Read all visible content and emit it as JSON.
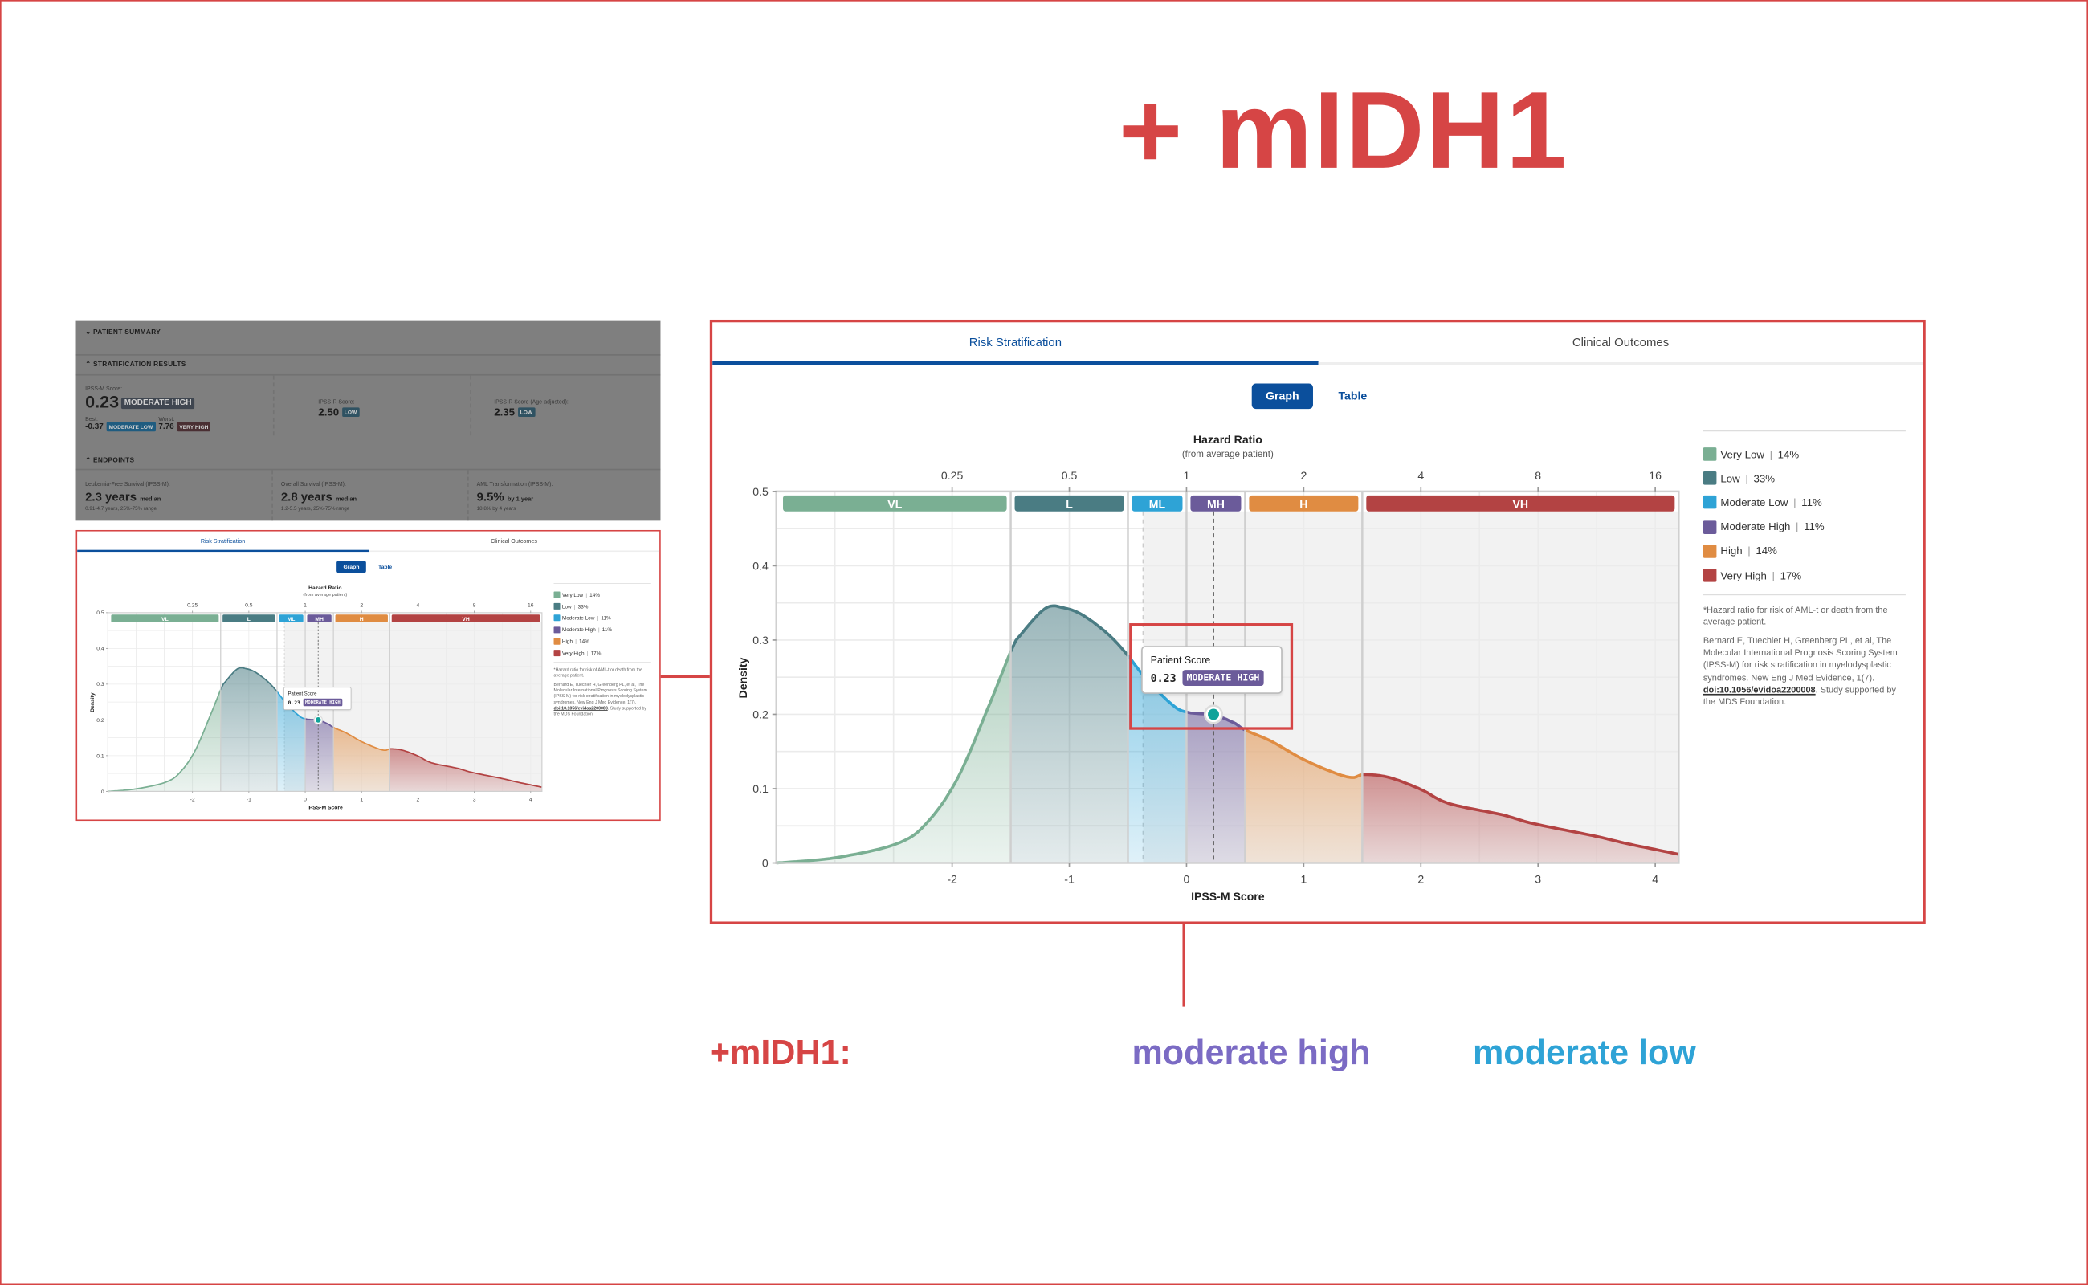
{
  "annotations": {
    "title": "+ mIDH1",
    "label": "+mIDH1:",
    "result_1": "moderate high",
    "result_2": "moderate low",
    "colors": {
      "red": "#d64545",
      "purple": "#7b6bc4",
      "blue": "#2ea3d6"
    }
  },
  "summary": {
    "patient_summary": "PATIENT SUMMARY",
    "stratification_results": "STRATIFICATION RESULTS",
    "ipssm_label": "IPSS-M Score:",
    "ipssm_value": "0.23",
    "ipssm_category": "MODERATE HIGH",
    "best_label": "Best:",
    "best_value": "-0.37",
    "best_category": "MODERATE LOW",
    "worst_label": "Worst:",
    "worst_value": "7.76",
    "worst_category": "VERY HIGH",
    "ipssr_label": "IPSS-R Score:",
    "ipssr_value": "2.50",
    "ipssr_category": "LOW",
    "ipssr_age_label": "IPSS-R Score (Age-adjusted):",
    "ipssr_age_value": "2.35",
    "ipssr_age_category": "LOW",
    "endpoints": "ENDPOINTS",
    "endpoint_items": [
      {
        "label": "Leukemia-Free Survival (IPSS-M):",
        "value": "2.3 years",
        "unit": "median",
        "sub": "0.91-4.7 years, 25%-75% range"
      },
      {
        "label": "Overall Survival (IPSS-M):",
        "value": "2.8 years",
        "unit": "median",
        "sub": "1.2-5.5 years, 25%-75% range"
      },
      {
        "label": "AML Transformation (IPSS-M):",
        "value": "9.5%",
        "unit": "by 1 year",
        "sub": "18.8% by 4 years"
      }
    ]
  },
  "panel": {
    "tabs": [
      {
        "label": "Risk Stratification",
        "active": true
      },
      {
        "label": "Clinical Outcomes",
        "active": false
      }
    ],
    "view_toggle": {
      "graph": "Graph",
      "table": "Table",
      "selected": "Graph"
    },
    "tooltip": {
      "title": "Patient Score",
      "score": "0.23",
      "category": "MODERATE HIGH"
    },
    "legend": {
      "items": [
        {
          "label": "Very Low",
          "pct": "14%",
          "color": "#7aaf93"
        },
        {
          "label": "Low",
          "pct": "33%",
          "color": "#4a7c83"
        },
        {
          "label": "Moderate Low",
          "pct": "11%",
          "color": "#2ea3d6"
        },
        {
          "label": "Moderate High",
          "pct": "11%",
          "color": "#6b5b9a"
        },
        {
          "label": "High",
          "pct": "14%",
          "color": "#e08c42"
        },
        {
          "label": "Very High",
          "pct": "17%",
          "color": "#b34343"
        }
      ],
      "footnote": "*Hazard ratio for risk of AML-t or death from the average patient.",
      "citation": "Bernard E, Tuechler H, Greenberg PL, et al, The Molecular International Prognosis Scoring System (IPSS-M) for risk stratification in myelodysplastic syndromes. New Eng J Med Evidence, 1(7).",
      "doi": "doi:10.1056/evidoa2200008",
      "support": ". Study supported by the MDS Foundation."
    }
  },
  "chart_data": {
    "type": "area",
    "title": "",
    "top_axis_title": "Hazard Ratio",
    "top_axis_subtitle": "(from average patient)",
    "top_ticks": [
      {
        "label": "0.25",
        "value": 0.25
      },
      {
        "label": "0.5",
        "value": 0.5
      },
      {
        "label": "1",
        "value": 1
      },
      {
        "label": "2",
        "value": 2
      },
      {
        "label": "4",
        "value": 4
      },
      {
        "label": "8",
        "value": 8
      },
      {
        "label": "16",
        "value": 16
      }
    ],
    "xlabel": "IPSS-M Score",
    "ylabel": "Density",
    "xlim": [
      -3.5,
      4.2
    ],
    "ylim": [
      0,
      0.5
    ],
    "x_ticks": [
      {
        "label": "-2",
        "value": -2
      },
      {
        "label": "-1",
        "value": -1
      },
      {
        "label": "0",
        "value": 0
      },
      {
        "label": "1",
        "value": 1
      },
      {
        "label": "2",
        "value": 2
      },
      {
        "label": "3",
        "value": 3
      },
      {
        "label": "4",
        "value": 4
      }
    ],
    "y_ticks": [
      {
        "label": "0",
        "value": 0
      },
      {
        "label": "0.1",
        "value": 0.1
      },
      {
        "label": "0.2",
        "value": 0.2
      },
      {
        "label": "0.3",
        "value": 0.3
      },
      {
        "label": "0.4",
        "value": 0.4
      },
      {
        "label": "0.5",
        "value": 0.5
      }
    ],
    "grid": true,
    "bands": [
      {
        "short": "VL",
        "from": -3.5,
        "to": -1.5,
        "color": "#7aaf93"
      },
      {
        "short": "L",
        "from": -1.5,
        "to": -0.5,
        "color": "#4a7c83"
      },
      {
        "short": "ML",
        "from": -0.5,
        "to": 0,
        "color": "#2ea3d6"
      },
      {
        "short": "MH",
        "from": 0,
        "to": 0.5,
        "color": "#6b5b9a"
      },
      {
        "short": "H",
        "from": 0.5,
        "to": 1.5,
        "color": "#e08c42"
      },
      {
        "short": "VH",
        "from": 1.5,
        "to": 4.2,
        "color": "#b34343"
      }
    ],
    "patient_score": 0.23,
    "patient_density": 0.2,
    "best_score": -0.37,
    "marker_color": "#10a39a",
    "points": [
      [
        -3.5,
        0.0
      ],
      [
        -3.0,
        0.007
      ],
      [
        -2.47,
        0.026
      ],
      [
        -2.21,
        0.055
      ],
      [
        -1.95,
        0.115
      ],
      [
        -1.68,
        0.214
      ],
      [
        -1.49,
        0.288
      ],
      [
        -1.41,
        0.308
      ],
      [
        -1.2,
        0.343
      ],
      [
        -1.04,
        0.343
      ],
      [
        -0.88,
        0.333
      ],
      [
        -0.67,
        0.308
      ],
      [
        -0.51,
        0.281
      ],
      [
        -0.35,
        0.249
      ],
      [
        -0.13,
        0.214
      ],
      [
        0.0,
        0.203
      ],
      [
        0.23,
        0.199
      ],
      [
        0.4,
        0.189
      ],
      [
        0.5,
        0.179
      ],
      [
        0.72,
        0.164
      ],
      [
        0.99,
        0.14
      ],
      [
        1.25,
        0.122
      ],
      [
        1.41,
        0.115
      ],
      [
        1.52,
        0.119
      ],
      [
        1.73,
        0.115
      ],
      [
        2.0,
        0.099
      ],
      [
        2.24,
        0.08
      ],
      [
        2.69,
        0.065
      ],
      [
        2.96,
        0.053
      ],
      [
        3.49,
        0.036
      ],
      [
        3.76,
        0.026
      ],
      [
        4.19,
        0.012
      ]
    ]
  }
}
